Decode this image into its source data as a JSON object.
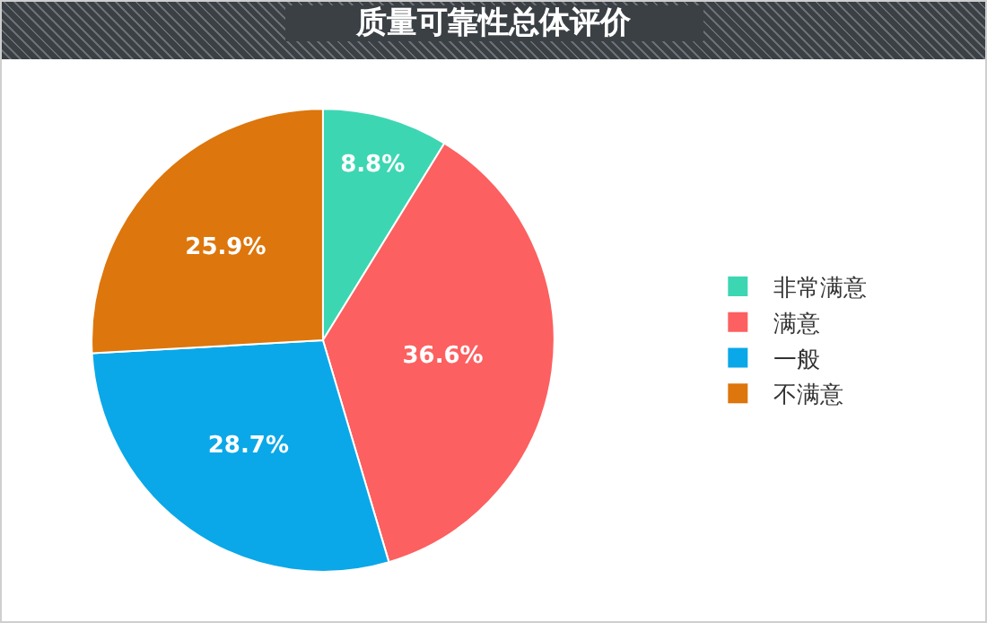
{
  "chart_data": {
    "type": "pie",
    "title": "质量可靠性总体评价",
    "categories": [
      "非常满意",
      "满意",
      "一般",
      "不满意"
    ],
    "values": [
      8.8,
      36.6,
      28.7,
      25.9
    ],
    "value_labels": [
      "8.8%",
      "36.6%",
      "28.7%",
      "25.9%"
    ],
    "colors": [
      "#3dd6b3",
      "#fc6060",
      "#0aa8e8",
      "#dd760c"
    ],
    "legend": "right"
  }
}
